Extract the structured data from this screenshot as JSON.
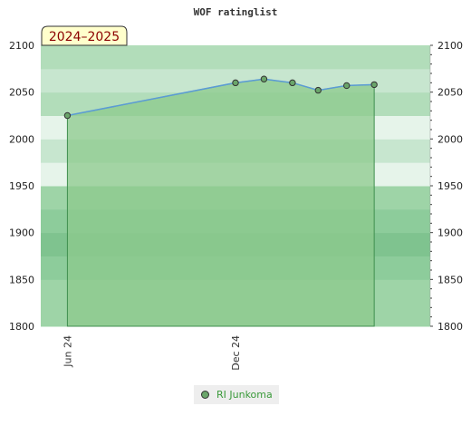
{
  "chart_data": {
    "type": "area",
    "title": "WOF ratinglist",
    "badge": "2024–2025",
    "ylim": [
      1800,
      2100
    ],
    "y_ticks": [
      1800,
      1850,
      1900,
      1950,
      2000,
      2050,
      2100
    ],
    "x_ticks": [
      {
        "label": "Jun 24",
        "date": "2024-06-01"
      },
      {
        "label": "Dec 24",
        "date": "2024-12-01"
      }
    ],
    "xlim": [
      "2024-05-03",
      "2025-07-01"
    ],
    "series": [
      {
        "name": "RI Junkoma",
        "points": [
          {
            "date": "2024-06-01",
            "value": 2025
          },
          {
            "date": "2024-12-01",
            "value": 2060
          },
          {
            "date": "2025-01-01",
            "value": 2064
          },
          {
            "date": "2025-02-01",
            "value": 2060
          },
          {
            "date": "2025-03-01",
            "value": 2052
          },
          {
            "date": "2025-04-01",
            "value": 2057
          },
          {
            "date": "2025-05-01",
            "value": 2058
          }
        ]
      }
    ],
    "legend_position": "bottom-center",
    "colors": {
      "area_fill": "#8cc98c",
      "line": "#5b9bd5",
      "marker": "#6aa56a",
      "band_dark": "#7fc38f",
      "band_light": "#e6f4ea",
      "badge_bg": "#ffffcc",
      "legend_text": "#3a9a3a"
    }
  }
}
